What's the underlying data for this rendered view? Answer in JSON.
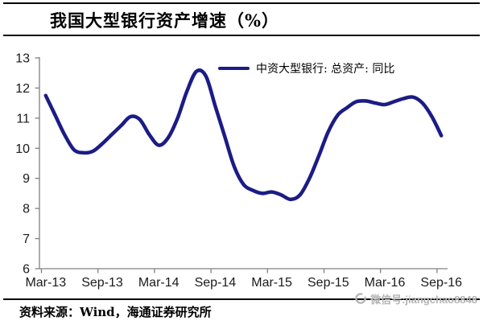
{
  "title": "我国大型银行资产增速（%）",
  "legend": {
    "label": "中资大型银行: 总资产: 同比"
  },
  "source": "资料来源：Wind，海通证券研究所",
  "watermark": {
    "text": "微信号:jiangchao8848"
  },
  "colors": {
    "line": "#1c1c86",
    "axis": "#808080",
    "tick_label": "#1a1a1a",
    "watermark": "#b4b4b4",
    "rule": "#000000"
  },
  "chart_data": {
    "type": "line",
    "title": "我国大型银行资产增速（%）",
    "xlabel": "",
    "ylabel": "",
    "ylim": [
      6,
      13
    ],
    "y_ticks": [
      6,
      7,
      8,
      9,
      10,
      11,
      12,
      13
    ],
    "x_tick_labels": [
      "Mar-13",
      "Sep-13",
      "Mar-14",
      "Sep-14",
      "Mar-15",
      "Sep-15",
      "Mar-16",
      "Sep-16"
    ],
    "grid": false,
    "legend_position": "top-center",
    "x": [
      "Mar-13",
      "Apr-13",
      "May-13",
      "Jun-13",
      "Jul-13",
      "Aug-13",
      "Sep-13",
      "Oct-13",
      "Nov-13",
      "Dec-13",
      "Jan-14",
      "Feb-14",
      "Mar-14",
      "Apr-14",
      "May-14",
      "Jun-14",
      "Jul-14",
      "Aug-14",
      "Sep-14",
      "Oct-14",
      "Nov-14",
      "Dec-14",
      "Jan-15",
      "Feb-15",
      "Mar-15",
      "Apr-15",
      "May-15",
      "Jun-15",
      "Jul-15",
      "Aug-15",
      "Sep-15",
      "Oct-15",
      "Nov-15",
      "Dec-15",
      "Jan-16",
      "Feb-16",
      "Mar-16",
      "Apr-16",
      "May-16",
      "Jun-16",
      "Jul-16",
      "Aug-16",
      "Sep-16"
    ],
    "series": [
      {
        "name": "中资大型银行: 总资产: 同比",
        "color": "#1c1c86",
        "values": [
          11.75,
          11.1,
          10.45,
          9.95,
          9.85,
          9.9,
          10.15,
          10.45,
          10.75,
          11.05,
          10.95,
          10.45,
          10.1,
          10.35,
          11.0,
          11.9,
          12.55,
          12.4,
          11.4,
          10.4,
          9.4,
          8.8,
          8.6,
          8.5,
          8.55,
          8.45,
          8.3,
          8.45,
          9.0,
          9.75,
          10.55,
          11.1,
          11.35,
          11.55,
          11.57,
          11.5,
          11.45,
          11.55,
          11.65,
          11.7,
          11.5,
          11.05,
          10.42
        ]
      }
    ]
  }
}
